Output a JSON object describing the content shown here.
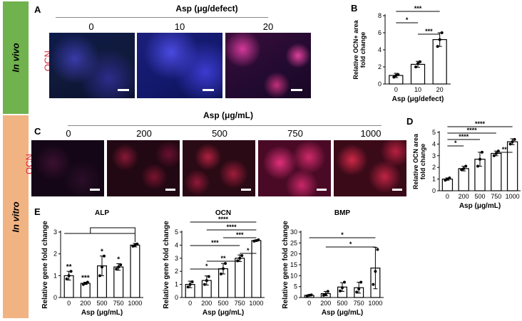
{
  "side_labels": {
    "top": "In vivo",
    "bottom": "In vitro"
  },
  "panel_letters": {
    "a": "A",
    "b": "B",
    "c": "C",
    "d": "D",
    "e": "E"
  },
  "panel_a": {
    "header": "Asp (μg/defect)",
    "concentrations": [
      "0",
      "10",
      "20"
    ],
    "stain": "OCN"
  },
  "panel_c": {
    "header": "Asp (μg/mL)",
    "concentrations": [
      "0",
      "200",
      "500",
      "750",
      "1000"
    ],
    "stain": "OCN"
  },
  "chart_data": [
    {
      "id": "B",
      "type": "bar",
      "categories": [
        "0",
        "10",
        "20"
      ],
      "values": [
        1.0,
        2.3,
        5.2
      ],
      "errors": [
        0.25,
        0.35,
        0.8
      ],
      "points": [
        [
          0.8,
          1.0,
          1.1
        ],
        [
          2.0,
          2.4,
          2.6
        ],
        [
          4.4,
          5.2,
          6.0
        ]
      ],
      "ylim": [
        0,
        8
      ],
      "yticks": [
        0,
        2,
        4,
        6,
        8
      ],
      "ylabel": "Relative OCN+ area fold change",
      "xlabel": "Asp (μg/defect)",
      "title": "",
      "significance": [
        {
          "from": 0,
          "to": 2,
          "label": "***"
        },
        {
          "from": 0,
          "to": 1,
          "label": "*"
        },
        {
          "from": 1,
          "to": 2,
          "label": "***"
        }
      ]
    },
    {
      "id": "D",
      "type": "bar",
      "categories": [
        "0",
        "200",
        "500",
        "750",
        "1000"
      ],
      "values": [
        1.0,
        1.9,
        2.7,
        3.2,
        4.2
      ],
      "errors": [
        0.1,
        0.2,
        0.6,
        0.2,
        0.25
      ],
      "points": [
        [
          0.9,
          1.0,
          1.1
        ],
        [
          1.8,
          1.9,
          2.1
        ],
        [
          2.1,
          2.7,
          3.3
        ],
        [
          3.0,
          3.2,
          3.4
        ],
        [
          4.0,
          4.2,
          4.4
        ]
      ],
      "ylim": [
        0,
        5
      ],
      "yticks": [
        0,
        1,
        2,
        3,
        4,
        5
      ],
      "ylabel": "Relative OCN area fold change",
      "xlabel": "Asp (μg/mL)",
      "title": "",
      "significance": [
        {
          "from": 0,
          "to": 4,
          "label": "****"
        },
        {
          "from": 0,
          "to": 3,
          "label": "****"
        },
        {
          "from": 0,
          "to": 2,
          "label": "****"
        },
        {
          "from": 0,
          "to": 1,
          "label": "*"
        },
        {
          "from": 3,
          "to": 4,
          "label": "**"
        }
      ]
    },
    {
      "id": "E-ALP",
      "type": "bar",
      "title": "ALP",
      "categories": [
        "0",
        "200",
        "500",
        "750",
        "1000"
      ],
      "values": [
        1.0,
        0.65,
        1.45,
        1.4,
        2.4
      ],
      "errors": [
        0.2,
        0.05,
        0.45,
        0.15,
        0.08
      ],
      "points": [
        [
          0.85,
          1.0,
          1.2
        ],
        [
          0.6,
          0.65,
          0.7
        ],
        [
          1.0,
          1.4,
          1.9
        ],
        [
          1.3,
          1.4,
          1.5
        ],
        [
          2.35,
          2.4,
          2.45
        ]
      ],
      "ylim": [
        0,
        3
      ],
      "yticks": [
        0,
        1,
        2,
        3
      ],
      "ylabel": "Relative gene fold change",
      "xlabel": "Asp (μg/mL)",
      "bar_labels": [
        "**",
        "***",
        "*",
        "*",
        ""
      ],
      "bracket_to": 4
    },
    {
      "id": "E-OCN",
      "type": "bar",
      "title": "OCN",
      "categories": [
        "0",
        "200",
        "500",
        "750",
        "1000"
      ],
      "values": [
        1.0,
        1.3,
        2.2,
        3.0,
        4.35
      ],
      "errors": [
        0.25,
        0.35,
        0.4,
        0.25,
        0.05
      ],
      "points": [
        [
          0.8,
          1.0,
          1.2
        ],
        [
          1.0,
          1.3,
          1.6
        ],
        [
          1.8,
          2.2,
          2.6
        ],
        [
          2.8,
          3.0,
          3.2
        ],
        [
          4.3,
          4.35,
          4.4
        ]
      ],
      "ylim": [
        0,
        5
      ],
      "yticks": [
        0,
        1,
        2,
        3,
        4,
        5
      ],
      "ylabel": "Relative gene fold change",
      "xlabel": "Asp (μg/mL)",
      "significance": [
        {
          "from": 0,
          "to": 4,
          "label": "****"
        },
        {
          "from": 1,
          "to": 4,
          "label": "****"
        },
        {
          "from": 2,
          "to": 4,
          "label": "***"
        },
        {
          "from": 0,
          "to": 3,
          "label": "***"
        },
        {
          "from": 3,
          "to": 4,
          "label": "*"
        },
        {
          "from": 1,
          "to": 3,
          "label": "**"
        },
        {
          "from": 0,
          "to": 2,
          "label": "*"
        }
      ]
    },
    {
      "id": "E-BMP",
      "type": "bar",
      "title": "BMP",
      "categories": [
        "0",
        "200",
        "500",
        "750",
        "1000"
      ],
      "values": [
        1.0,
        1.8,
        4.8,
        4.5,
        13.5
      ],
      "errors": [
        0.3,
        1.0,
        2.0,
        2.5,
        9.5
      ],
      "points": [
        [
          0.7,
          1.0,
          1.2
        ],
        [
          1.0,
          1.5,
          2.8
        ],
        [
          3.0,
          4.5,
          7.0
        ],
        [
          2.5,
          4.0,
          7.0
        ],
        [
          6.0,
          12.0,
          22.0
        ]
      ],
      "ylim": [
        0,
        30
      ],
      "yticks": [
        0,
        5,
        10,
        15,
        20,
        25,
        30
      ],
      "ylabel": "Relative gene fold change",
      "xlabel": "Asp (μg/mL)",
      "significance": [
        {
          "from": 0,
          "to": 4,
          "label": "*"
        },
        {
          "from": 1,
          "to": 4,
          "label": "*"
        }
      ]
    }
  ]
}
